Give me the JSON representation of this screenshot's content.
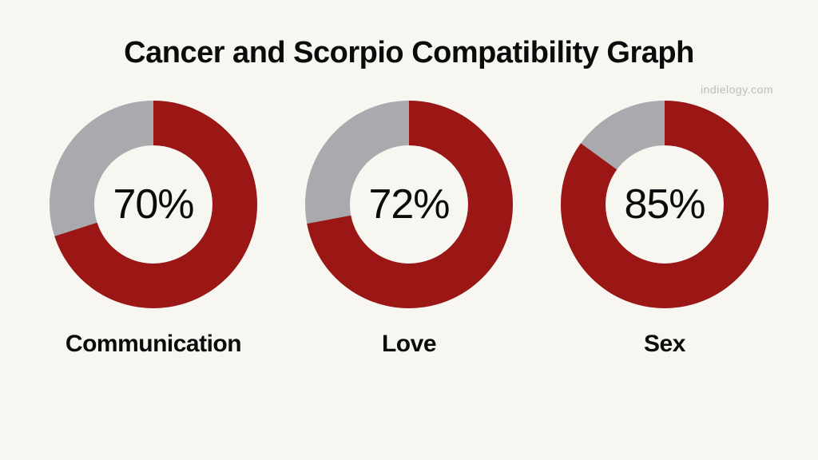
{
  "title": "Cancer and Scorpio Compatibility Graph",
  "watermark": "indielogy.com",
  "background_color": "#f7f6f0",
  "title_color": "#0b0b0b",
  "title_fontsize": 38,
  "watermark_color": "#bdbdb7",
  "chart_style": {
    "type": "donut",
    "diameter": 260,
    "stroke_width": 56,
    "fill_color": "#9b1716",
    "track_color": "#a9aaad",
    "center_text_color": "#0b0b0b",
    "center_text_fontsize": 52,
    "label_color": "#0b0b0b",
    "label_fontsize": 30,
    "start_angle_deg": 0
  },
  "metrics": [
    {
      "label": "Communication",
      "value": 70,
      "display": "70%"
    },
    {
      "label": "Love",
      "value": 72,
      "display": "72%"
    },
    {
      "label": "Sex",
      "value": 85,
      "display": "85%"
    }
  ]
}
